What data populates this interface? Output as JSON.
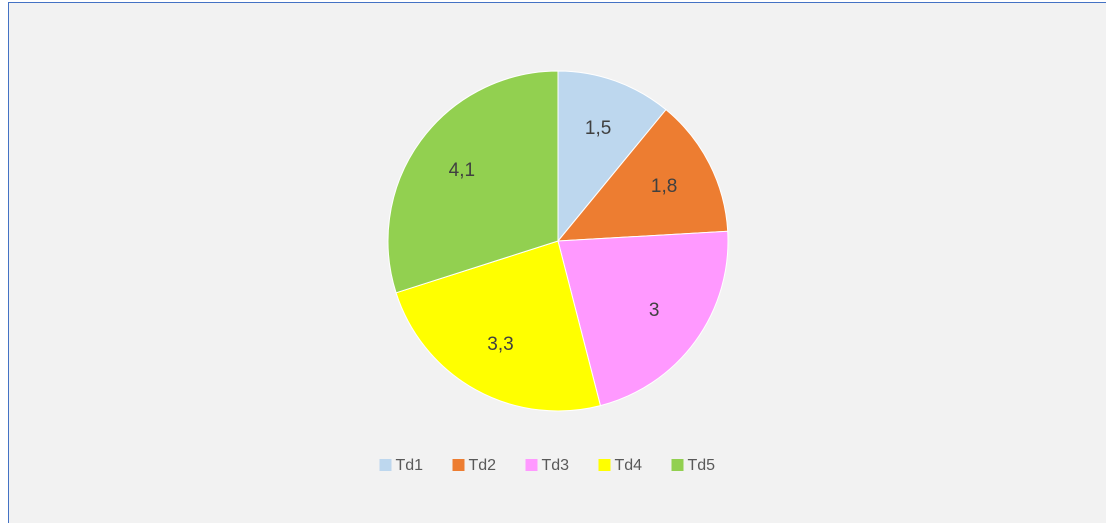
{
  "chart_data": {
    "type": "pie",
    "categories": [
      "Td1",
      "Td2",
      "Td3",
      "Td4",
      "Td5"
    ],
    "values": [
      1.5,
      1.8,
      3,
      3.3,
      4.1
    ],
    "value_labels": [
      "1,5",
      "1,8",
      "3",
      "3,3",
      "4,1"
    ],
    "colors": [
      "#bdd7ee",
      "#ed7d31",
      "#ff99ff",
      "#ffff00",
      "#92d050"
    ],
    "legend": "bottom"
  }
}
